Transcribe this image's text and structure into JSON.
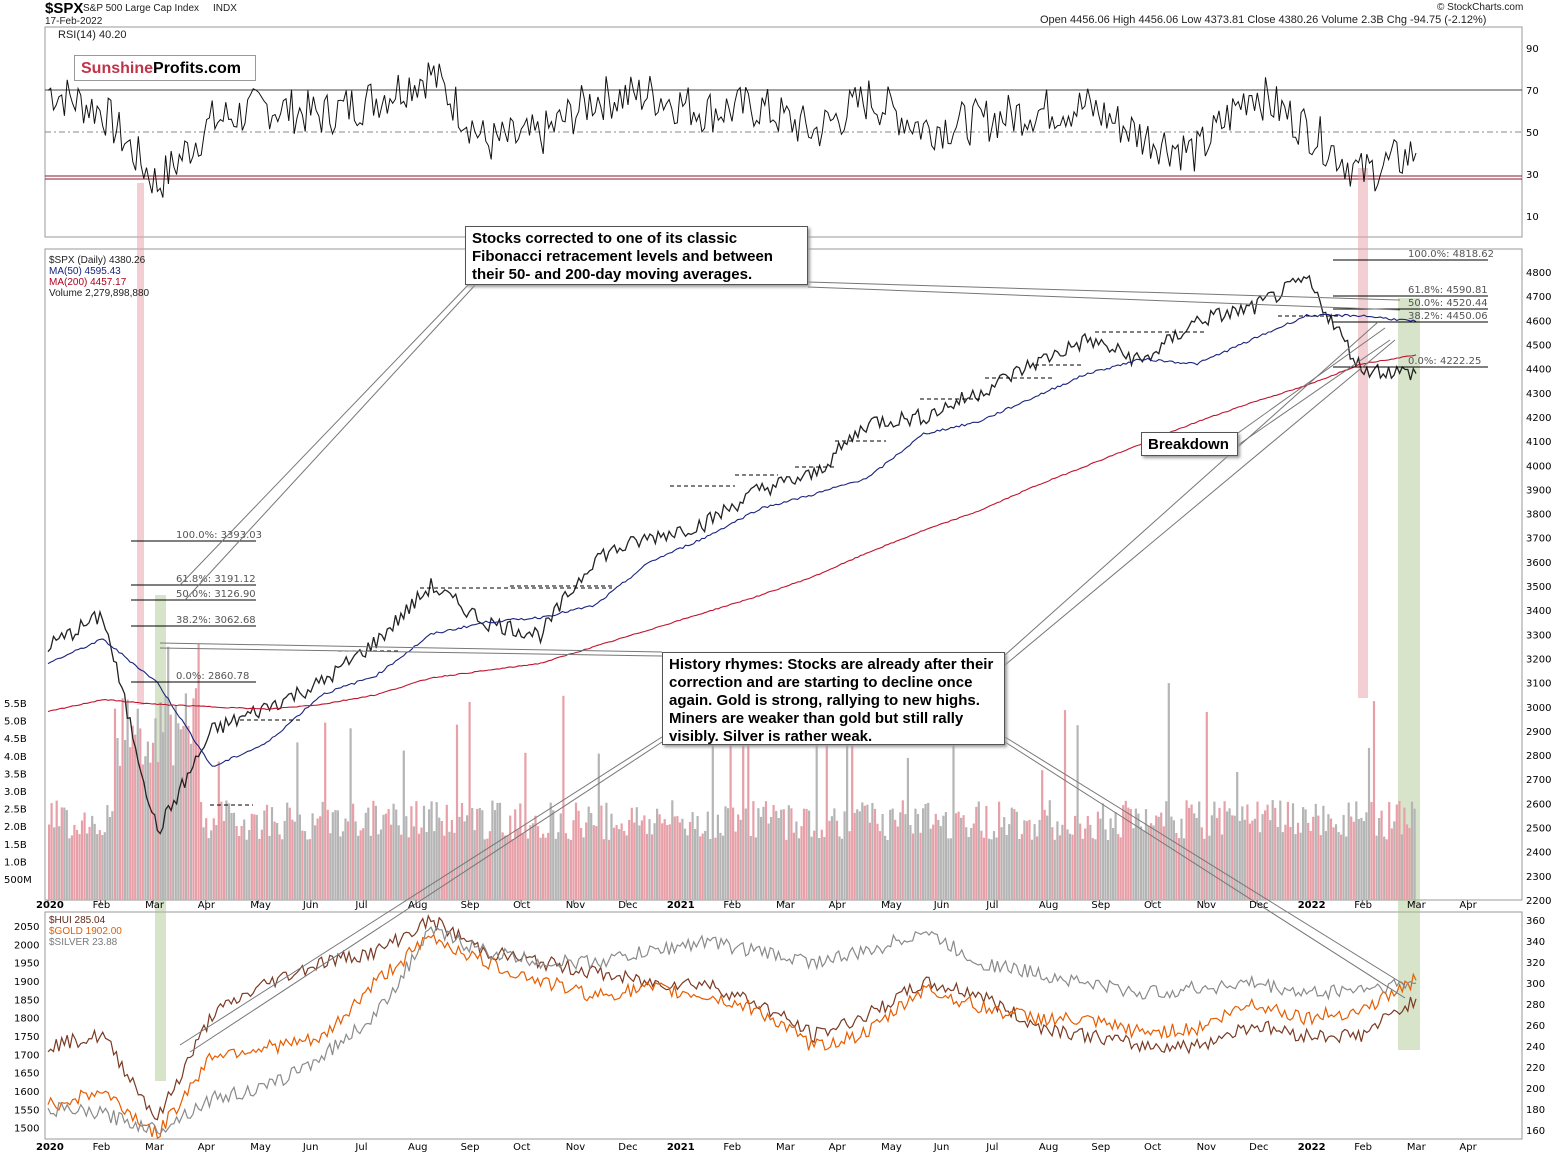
{
  "header": {
    "symbol": "$SPX",
    "name": "S&P 500 Large Cap Index",
    "exchange": "INDX",
    "date": "17-Feb-2022",
    "ohlc": "Open 4456.06  High 4456.06  Low 4373.81  Close 4380.26  Volume 2.3B  Chg -94.75 (-2.12%)",
    "credit": "© StockCharts.com"
  },
  "logo": {
    "part1": "Sunshine",
    "part2": "Profits.com"
  },
  "rsi_panel": {
    "label": "RSI(14) 40.20",
    "levels": [
      90,
      70,
      50,
      30,
      10
    ]
  },
  "price_panel": {
    "legend": [
      "$SPX (Daily) 4380.26",
      "MA(50) 4595.43",
      "MA(200) 4457.17",
      "Volume 2,279,898,880"
    ],
    "price_ticks": [
      4800,
      4700,
      4600,
      4500,
      4400,
      4300,
      4200,
      4100,
      4000,
      3900,
      3800,
      3700,
      3600,
      3500,
      3400,
      3300,
      3200,
      3100,
      3000,
      2900,
      2800,
      2700,
      2600,
      2500,
      2400,
      2300,
      2200
    ],
    "volume_ticks": [
      "5.5B",
      "5.0B",
      "4.5B",
      "4.0B",
      "3.5B",
      "3.0B",
      "2.5B",
      "2.0B",
      "1.5B",
      "1.0B",
      "500M"
    ],
    "fib_2020": [
      "100.0%: 3393.03",
      "61.8%: 3191.12",
      "50.0%: 3126.90",
      "38.2%: 3062.68",
      "0.0%: 2860.78"
    ],
    "fib_2022": [
      "100.0%: 4818.62",
      "61.8%: 4590.81",
      "50.0%: 4520.44",
      "38.2%: 4450.06",
      "0.0%: 4222.25"
    ]
  },
  "metals_panel": {
    "legend": [
      "$HUI 285.04",
      "$GOLD 1902.00",
      "$SILVER 23.88"
    ],
    "left_ticks": [
      2050,
      2000,
      1950,
      1900,
      1850,
      1800,
      1750,
      1700,
      1650,
      1600,
      1550,
      1500
    ],
    "right_ticks": [
      360,
      340,
      320,
      300,
      280,
      260,
      240,
      220,
      200,
      180,
      160
    ]
  },
  "x_axis": {
    "labels": [
      "2020",
      "Feb",
      "Mar",
      "Apr",
      "May",
      "Jun",
      "Jul",
      "Aug",
      "Sep",
      "Oct",
      "Nov",
      "Dec",
      "2021",
      "Feb",
      "Mar",
      "Apr",
      "May",
      "Jun",
      "Jul",
      "Aug",
      "Sep",
      "Oct",
      "Nov",
      "Dec",
      "2022",
      "Feb",
      "Mar",
      "Apr"
    ]
  },
  "annotations": {
    "top_note": "Stocks corrected to one of its classic Fibonacci retracement levels and between their 50- and 200-day moving averages.",
    "breakdown": "Breakdown",
    "history_note": "History rhymes: Stocks are already after their correction and are starting to decline once again. Gold is strong, rallying to new highs. Miners are weaker than gold but still rally visibly. Silver is rather weak."
  },
  "chart_data": [
    {
      "type": "line",
      "title": "RSI(14)",
      "x": [
        "2020-01",
        "2020-02",
        "2020-03",
        "2020-04",
        "2020-05",
        "2020-06",
        "2020-07",
        "2020-08",
        "2020-09",
        "2020-10",
        "2020-11",
        "2020-12",
        "2021-01",
        "2021-02",
        "2021-03",
        "2021-04",
        "2021-05",
        "2021-06",
        "2021-07",
        "2021-08",
        "2021-09",
        "2021-10",
        "2021-11",
        "2021-12",
        "2022-01",
        "2022-02"
      ],
      "series": [
        {
          "name": "RSI(14) 40.20",
          "values": [
            70,
            60,
            25,
            55,
            62,
            58,
            66,
            78,
            45,
            48,
            66,
            68,
            60,
            62,
            50,
            66,
            52,
            55,
            60,
            62,
            48,
            40,
            70,
            52,
            30,
            40
          ]
        }
      ],
      "ylim": [
        0,
        100
      ]
    },
    {
      "type": "line",
      "title": "$SPX (Daily)",
      "x": [
        "2020-01",
        "2020-02",
        "2020-03",
        "2020-04",
        "2020-05",
        "2020-06",
        "2020-07",
        "2020-08",
        "2020-09",
        "2020-10",
        "2020-11",
        "2020-12",
        "2021-01",
        "2021-02",
        "2021-03",
        "2021-04",
        "2021-05",
        "2021-06",
        "2021-07",
        "2021-08",
        "2021-09",
        "2021-10",
        "2021-11",
        "2021-12",
        "2022-01",
        "2022-02"
      ],
      "series": [
        {
          "name": "$SPX (Daily) 4380.26",
          "values": [
            3250,
            3380,
            2480,
            2900,
            3000,
            3100,
            3270,
            3500,
            3350,
            3300,
            3620,
            3700,
            3760,
            3900,
            3960,
            4180,
            4200,
            4300,
            4420,
            4520,
            4430,
            4600,
            4650,
            4770,
            4400,
            4380
          ]
        },
        {
          "name": "MA(50) 4595.43",
          "values": [
            3180,
            3280,
            3100,
            2750,
            2850,
            3050,
            3130,
            3300,
            3350,
            3370,
            3420,
            3600,
            3700,
            3820,
            3880,
            3950,
            4130,
            4180,
            4280,
            4380,
            4440,
            4420,
            4520,
            4620,
            4620,
            4595
          ]
        },
        {
          "name": "MA(200) 4457.17",
          "values": [
            2980,
            3030,
            3010,
            3000,
            2990,
            3010,
            3050,
            3120,
            3150,
            3180,
            3250,
            3320,
            3390,
            3460,
            3540,
            3640,
            3730,
            3810,
            3910,
            4000,
            4090,
            4180,
            4260,
            4330,
            4420,
            4457
          ]
        }
      ],
      "ylim": [
        2200,
        4850
      ]
    },
    {
      "type": "line",
      "title": "$HUI / $GOLD / $SILVER",
      "x": [
        "2020-01",
        "2020-02",
        "2020-03",
        "2020-04",
        "2020-05",
        "2020-06",
        "2020-07",
        "2020-08",
        "2020-09",
        "2020-10",
        "2020-11",
        "2020-12",
        "2021-01",
        "2021-02",
        "2021-03",
        "2021-04",
        "2021-05",
        "2021-06",
        "2021-07",
        "2021-08",
        "2021-09",
        "2021-10",
        "2021-11",
        "2021-12",
        "2022-01",
        "2022-02"
      ],
      "series": [
        {
          "name": "$HUI 285.04",
          "values": [
            240,
            250,
            170,
            270,
            300,
            320,
            330,
            360,
            330,
            320,
            310,
            300,
            300,
            280,
            250,
            270,
            300,
            290,
            260,
            250,
            240,
            240,
            260,
            250,
            250,
            285
          ]
        },
        {
          "name": "$GOLD 1902.00",
          "values": [
            1560,
            1600,
            1480,
            1700,
            1720,
            1740,
            1900,
            2020,
            1950,
            1900,
            1860,
            1880,
            1860,
            1820,
            1720,
            1760,
            1880,
            1830,
            1800,
            1790,
            1760,
            1770,
            1840,
            1800,
            1820,
            1902
          ]
        },
        {
          "name": "$SILVER 23.88",
          "values": [
            180,
            175,
            160,
            190,
            200,
            230,
            270,
            350,
            330,
            320,
            320,
            330,
            340,
            330,
            320,
            330,
            350,
            320,
            310,
            300,
            290,
            295,
            300,
            290,
            295,
            300
          ]
        }
      ],
      "ylim_left": [
        1480,
        2080
      ],
      "ylim_right": [
        155,
        365
      ]
    }
  ]
}
